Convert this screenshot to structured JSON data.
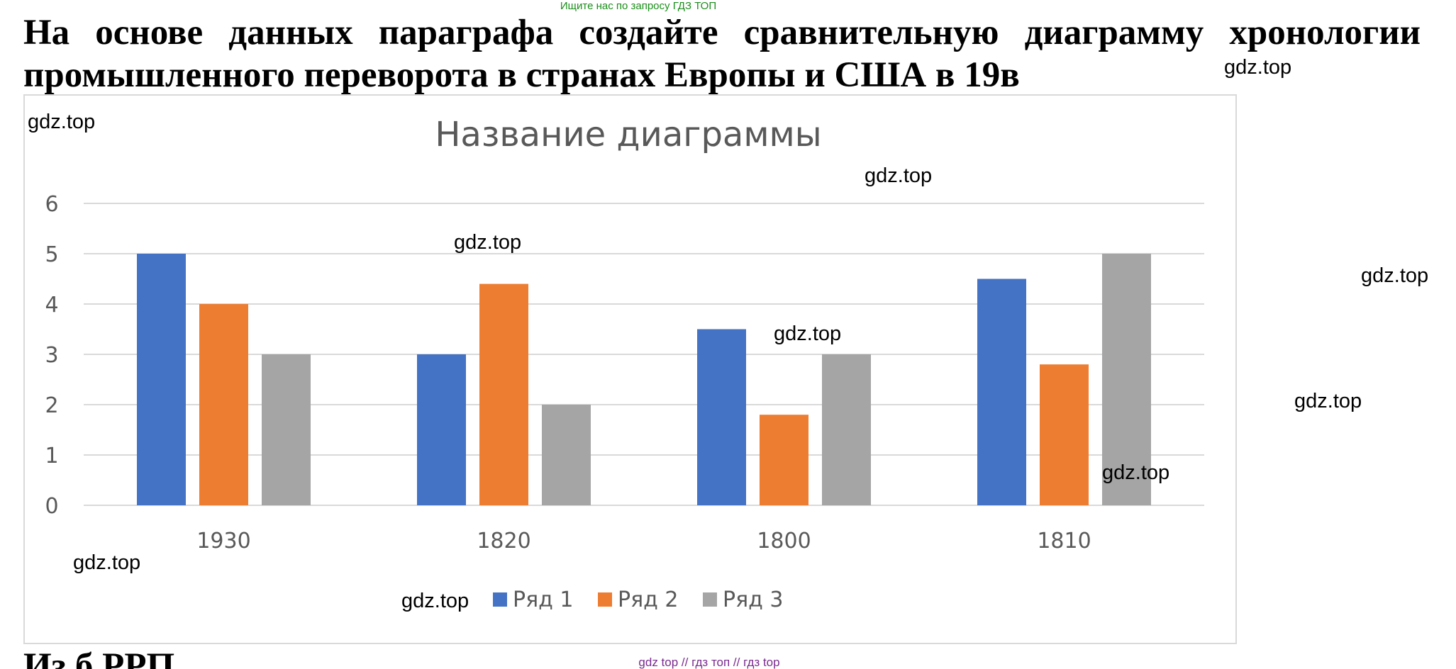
{
  "top_note": "Ищите нас по запросу ГДЗ ТОП",
  "heading": "На основе данных параграфа создайте сравнительную диаграмму хронологии промышленного переворота в странах Европы и США в 19в",
  "watermark_text": "gdz.top",
  "bottom_note": "gdz top  //  гдз топ  //  гдз top",
  "bottom_cut_text": "Из  б                                                           РРП",
  "colors": {
    "series1": "#4472C4",
    "series2": "#ED7D31",
    "series3": "#A5A5A5",
    "grid": "#d9d9d9",
    "axis_text": "#595959"
  },
  "chart_data": {
    "type": "bar",
    "title": "Название диаграммы",
    "categories": [
      "1930",
      "1820",
      "1800",
      "1810"
    ],
    "series": [
      {
        "name": "Ряд 1",
        "values": [
          5,
          3,
          3.5,
          4.5
        ]
      },
      {
        "name": "Ряд 2",
        "values": [
          4,
          4.4,
          1.8,
          2.8
        ]
      },
      {
        "name": "Ряд 3",
        "values": [
          3,
          2,
          3,
          5
        ]
      }
    ],
    "yticks": [
      "0",
      "1",
      "2",
      "3",
      "4",
      "5",
      "6"
    ],
    "ylim": [
      0,
      6
    ],
    "grid": true,
    "legend_position": "bottom",
    "xlabel": "",
    "ylabel": ""
  }
}
